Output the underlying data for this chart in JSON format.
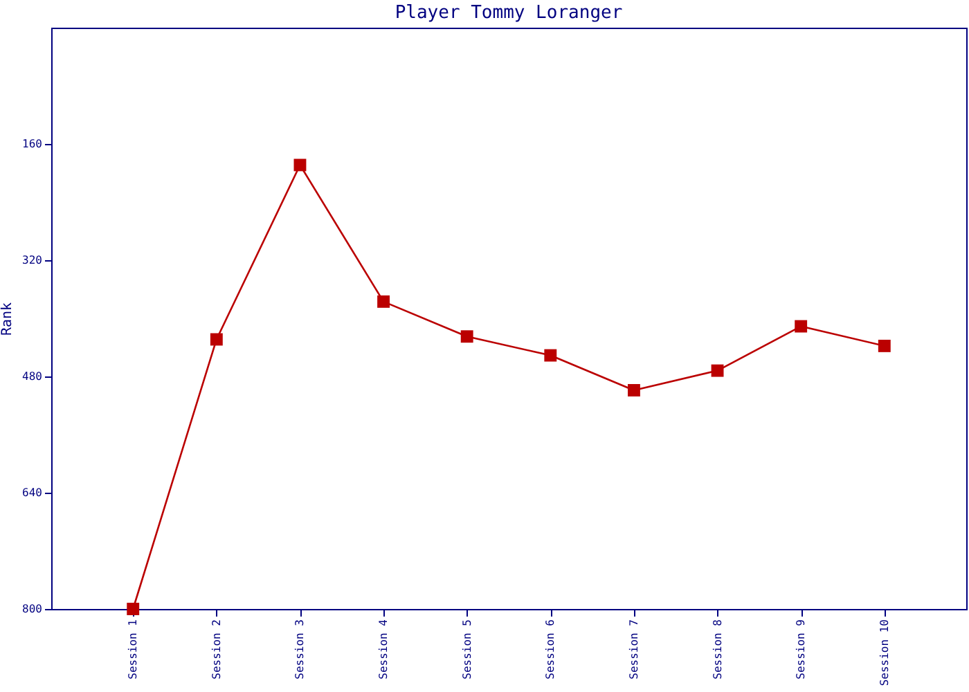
{
  "chart_data": {
    "type": "line",
    "title": "Player Tommy Loranger",
    "ylabel": "Rank",
    "categories": [
      "Session 1",
      "Session 2",
      "Session 3",
      "Session 4",
      "Session 5",
      "Session 6",
      "Session 7",
      "Session 8",
      "Session 9",
      "Session 10"
    ],
    "series": [
      {
        "color": "#bb0000",
        "values": [
          800,
          429,
          189,
          377,
          425,
          451,
          499,
          472,
          411,
          438
        ]
      }
    ],
    "ylim": [
      800,
      0
    ],
    "yticks": [
      160,
      320,
      480,
      640,
      800
    ],
    "grid": false,
    "marker": "square",
    "line_style": "solid"
  }
}
